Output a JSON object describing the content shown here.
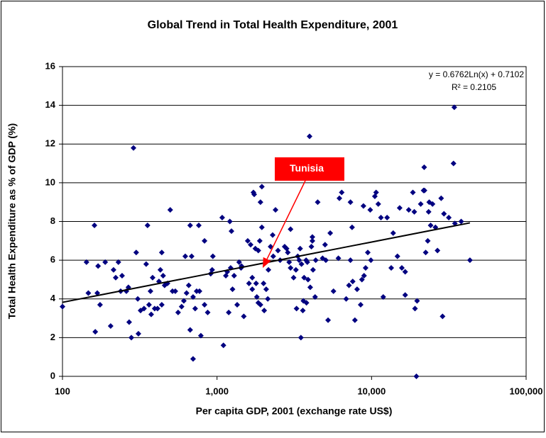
{
  "chart_data": {
    "type": "scatter",
    "title": "Global Trend in Total Health Expenditure, 2001",
    "x_label": "Per capita GDP, 2001 (exchange rate US$)",
    "y_label": "Total Health Expenditure as % of GDP (%)",
    "xscale": "log",
    "xlim": [
      100,
      100000
    ],
    "xticks": [
      100,
      {
        "value": 1000,
        "label": "1,000"
      },
      {
        "value": 10000,
        "label": "10,000"
      },
      {
        "value": 100000,
        "label": "100,000"
      }
    ],
    "ylim": [
      0,
      16
    ],
    "yticks": [
      0,
      2,
      4,
      6,
      8,
      10,
      12,
      14,
      16
    ],
    "grid": true,
    "color": "#000080",
    "x": [
      100,
      143,
      147,
      161,
      163,
      168,
      170,
      175,
      189,
      205,
      214,
      221,
      230,
      238,
      243,
      259,
      267,
      270,
      279,
      288,
      300,
      307,
      310,
      320,
      337,
      348,
      355,
      363,
      371,
      375,
      383,
      395,
      412,
      421,
      430,
      439,
      439,
      448,
      458,
      478,
      498,
      515,
      537,
      560,
      590,
      610,
      623,
      635,
      656,
      670,
      670,
      685,
      700,
      700,
      722,
      738,
      762,
      770,
      786,
      830,
      830,
      870,
      910,
      930,
      940,
      1100,
      1080,
      1140,
      1165,
      1190,
      1210,
      1225,
      1240,
      1260,
      1290,
      1350,
      1390,
      1430,
      1440,
      1490,
      1580,
      1610,
      1650,
      1690,
      1690,
      1720,
      1740,
      1770,
      1790,
      1810,
      1850,
      1850,
      1890,
      1910,
      1910,
      1950,
      1950,
      2000,
      2020,
      2080,
      2130,
      2150,
      2220,
      2290,
      2310,
      2390,
      2480,
      2560,
      2740,
      2820,
      2870,
      2930,
      2990,
      2990,
      3130,
      3240,
      3270,
      3330,
      3400,
      3450,
      3490,
      3520,
      3590,
      3620,
      3660,
      3770,
      3790,
      3840,
      3880,
      3970,
      4010,
      4080,
      4140,
      4140,
      4180,
      4310,
      4350,
      4480,
      4820,
      5000,
      5060,
      5230,
      5400,
      5670,
      6100,
      6190,
      6410,
      6850,
      7140,
      7300,
      7300,
      7480,
      7550,
      7800,
      8060,
      8500,
      8660,
      8860,
      8940,
      9150,
      9450,
      9800,
      9900,
      10500,
      10700,
      11050,
      11500,
      11900,
      12600,
      13400,
      13800,
      14700,
      15200,
      15700,
      16500,
      16500,
      17400,
      18500,
      18900,
      19100,
      19500,
      19700,
      20800,
      21700,
      21900,
      22000,
      22400,
      23100,
      23400,
      24100,
      23600,
      24800,
      25900,
      26700,
      28200,
      28800,
      29400,
      31600,
      33900,
      34300,
      34600,
      38000,
      43300
    ],
    "values": [
      3.6,
      5.9,
      4.3,
      7.8,
      2.3,
      4.3,
      5.7,
      3.7,
      5.9,
      2.6,
      5.5,
      5.1,
      5.9,
      4.4,
      5.2,
      4.4,
      4.6,
      2.8,
      2.0,
      11.8,
      6.4,
      4.0,
      2.2,
      3.4,
      3.5,
      5.8,
      7.8,
      3.7,
      4.4,
      3.2,
      5.1,
      3.5,
      3.5,
      4.9,
      5.5,
      6.4,
      3.7,
      5.2,
      4.7,
      4.8,
      8.6,
      4.4,
      4.4,
      3.3,
      3.6,
      3.9,
      6.2,
      4.3,
      4.7,
      2.4,
      7.8,
      6.2,
      0.9,
      4.1,
      3.5,
      4.4,
      7.8,
      4.4,
      2.1,
      7.0,
      3.7,
      3.3,
      5.3,
      5.5,
      6.2,
      1.6,
      8.2,
      5.2,
      5.4,
      3.3,
      8.0,
      5.6,
      7.5,
      4.5,
      5.2,
      3.7,
      5.9,
      5.6,
      5.7,
      3.1,
      7.0,
      4.8,
      6.8,
      4.5,
      5.1,
      9.5,
      9.4,
      6.6,
      4.8,
      4.1,
      3.8,
      6.5,
      7.0,
      9.0,
      3.7,
      7.7,
      9.8,
      4.8,
      3.4,
      4.5,
      4.0,
      5.5,
      6.7,
      7.3,
      6.2,
      8.6,
      6.5,
      6.0,
      6.7,
      6.6,
      6.4,
      5.9,
      7.6,
      5.6,
      5.1,
      5.5,
      3.5,
      6.2,
      6.0,
      6.6,
      2.0,
      5.8,
      3.4,
      3.9,
      5.1,
      6.0,
      3.8,
      5.9,
      5.0,
      12.4,
      4.6,
      6.7,
      7.2,
      7.0,
      5.5,
      4.1,
      6.0,
      9.0,
      6.1,
      6.8,
      6.0,
      2.9,
      7.4,
      4.4,
      6.1,
      9.2,
      9.5,
      4.0,
      4.7,
      6.0,
      9.0,
      7.7,
      4.9,
      2.9,
      4.5,
      3.7,
      5.0,
      8.8,
      5.2,
      5.6,
      6.4,
      8.6,
      6.0,
      9.3,
      9.5,
      8.9,
      8.2,
      4.1,
      8.2,
      5.6,
      7.4,
      6.2,
      8.7,
      5.6,
      4.2,
      5.4,
      8.6,
      9.5,
      8.5,
      3.5,
      0,
      3.9,
      8.9,
      9.6,
      10.8,
      9.6,
      6.4,
      7.0,
      8.5,
      7.8,
      9.0,
      8.9,
      7.7,
      6.5,
      9.2,
      3.1,
      8.4,
      8.2,
      11.0,
      13.9,
      7.9,
      8.0,
      6.0
    ],
    "trendline": {
      "equation": "y = 0.6762Ln(x) + 0.7102",
      "r2_label": "R² = 0.2105",
      "slope": 0.6762,
      "intercept": 0.7102
    },
    "annotation": {
      "text": "Tunisia",
      "x": 1975,
      "y": 5.6,
      "color": "#ff0000"
    }
  }
}
